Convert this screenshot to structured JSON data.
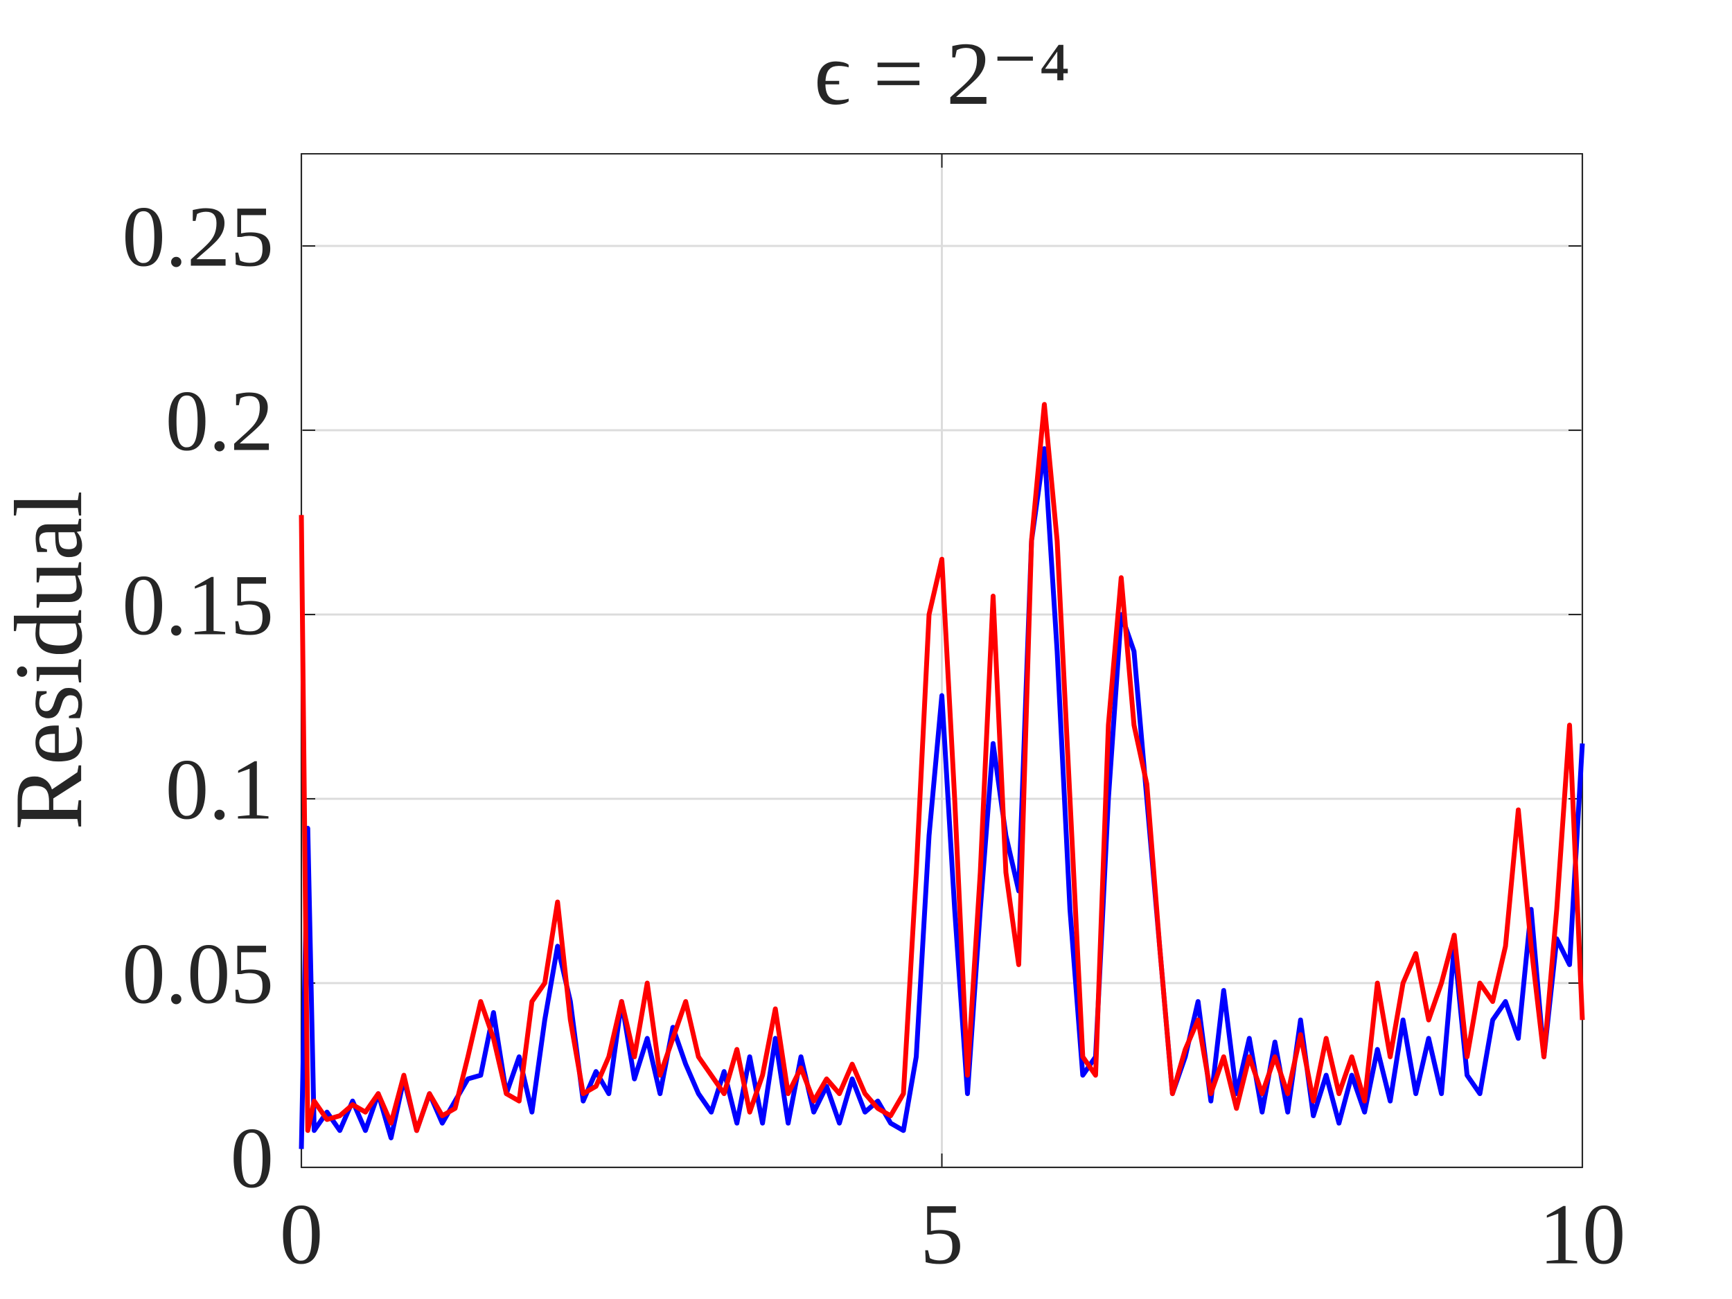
{
  "chart_data": {
    "type": "line",
    "title": "ϵ = 2⁻⁴",
    "y_label": "Residual",
    "x": [
      0,
      0.05,
      0.1,
      0.2,
      0.3,
      0.4,
      0.5,
      0.6,
      0.7,
      0.8,
      0.9,
      1.0,
      1.1,
      1.2,
      1.3,
      1.4,
      1.5,
      1.6,
      1.7,
      1.8,
      1.9,
      2.0,
      2.1,
      2.2,
      2.3,
      2.4,
      2.5,
      2.6,
      2.7,
      2.8,
      2.9,
      3.0,
      3.1,
      3.2,
      3.3,
      3.4,
      3.5,
      3.6,
      3.7,
      3.8,
      3.9,
      4.0,
      4.1,
      4.2,
      4.3,
      4.4,
      4.5,
      4.6,
      4.7,
      4.8,
      4.9,
      5.0,
      5.1,
      5.2,
      5.3,
      5.4,
      5.5,
      5.6,
      5.7,
      5.8,
      5.9,
      6.0,
      6.1,
      6.2,
      6.3,
      6.4,
      6.5,
      6.6,
      6.7,
      6.8,
      6.9,
      7.0,
      7.1,
      7.2,
      7.3,
      7.4,
      7.5,
      7.6,
      7.7,
      7.8,
      7.9,
      8.0,
      8.1,
      8.2,
      8.3,
      8.4,
      8.5,
      8.6,
      8.7,
      8.8,
      8.9,
      9.0,
      9.1,
      9.2,
      9.3,
      9.4,
      9.5,
      9.6,
      9.7,
      9.8,
      9.9,
      10.0
    ],
    "series": [
      {
        "color": "#0000ff",
        "values": [
          0.005,
          0.092,
          0.01,
          0.015,
          0.01,
          0.018,
          0.01,
          0.02,
          0.008,
          0.024,
          0.01,
          0.02,
          0.012,
          0.018,
          0.024,
          0.025,
          0.042,
          0.02,
          0.03,
          0.015,
          0.04,
          0.06,
          0.045,
          0.018,
          0.026,
          0.02,
          0.045,
          0.024,
          0.035,
          0.02,
          0.038,
          0.028,
          0.02,
          0.015,
          0.026,
          0.012,
          0.03,
          0.012,
          0.035,
          0.012,
          0.03,
          0.015,
          0.022,
          0.012,
          0.024,
          0.015,
          0.018,
          0.012,
          0.01,
          0.03,
          0.09,
          0.128,
          0.07,
          0.02,
          0.07,
          0.115,
          0.09,
          0.075,
          0.17,
          0.195,
          0.14,
          0.07,
          0.025,
          0.03,
          0.1,
          0.15,
          0.14,
          0.1,
          0.06,
          0.02,
          0.03,
          0.045,
          0.018,
          0.048,
          0.02,
          0.035,
          0.015,
          0.034,
          0.015,
          0.04,
          0.014,
          0.025,
          0.012,
          0.025,
          0.015,
          0.032,
          0.018,
          0.04,
          0.02,
          0.035,
          0.02,
          0.06,
          0.025,
          0.02,
          0.04,
          0.045,
          0.035,
          0.07,
          0.03,
          0.062,
          0.055,
          0.115
        ]
      },
      {
        "color": "#ff0000",
        "values": [
          0.177,
          0.01,
          0.018,
          0.013,
          0.014,
          0.017,
          0.015,
          0.02,
          0.012,
          0.025,
          0.01,
          0.02,
          0.014,
          0.016,
          0.03,
          0.045,
          0.035,
          0.02,
          0.018,
          0.045,
          0.05,
          0.072,
          0.04,
          0.02,
          0.022,
          0.03,
          0.045,
          0.03,
          0.05,
          0.025,
          0.035,
          0.045,
          0.03,
          0.025,
          0.02,
          0.032,
          0.015,
          0.025,
          0.043,
          0.02,
          0.027,
          0.018,
          0.024,
          0.02,
          0.028,
          0.02,
          0.016,
          0.014,
          0.02,
          0.08,
          0.15,
          0.165,
          0.1,
          0.025,
          0.08,
          0.155,
          0.08,
          0.055,
          0.17,
          0.207,
          0.17,
          0.1,
          0.03,
          0.025,
          0.12,
          0.16,
          0.12,
          0.104,
          0.06,
          0.02,
          0.032,
          0.04,
          0.02,
          0.03,
          0.016,
          0.03,
          0.02,
          0.03,
          0.02,
          0.036,
          0.018,
          0.035,
          0.02,
          0.03,
          0.018,
          0.05,
          0.03,
          0.05,
          0.058,
          0.04,
          0.05,
          0.063,
          0.03,
          0.05,
          0.045,
          0.06,
          0.097,
          0.06,
          0.03,
          0.07,
          0.12,
          0.04
        ]
      }
    ],
    "xlim": [
      0,
      10
    ],
    "xticks": [
      0,
      5,
      10
    ],
    "ylim": [
      0,
      0.275
    ],
    "yticks": [
      0,
      0.05,
      0.1,
      0.15,
      0.2,
      0.25
    ],
    "grid": true
  }
}
